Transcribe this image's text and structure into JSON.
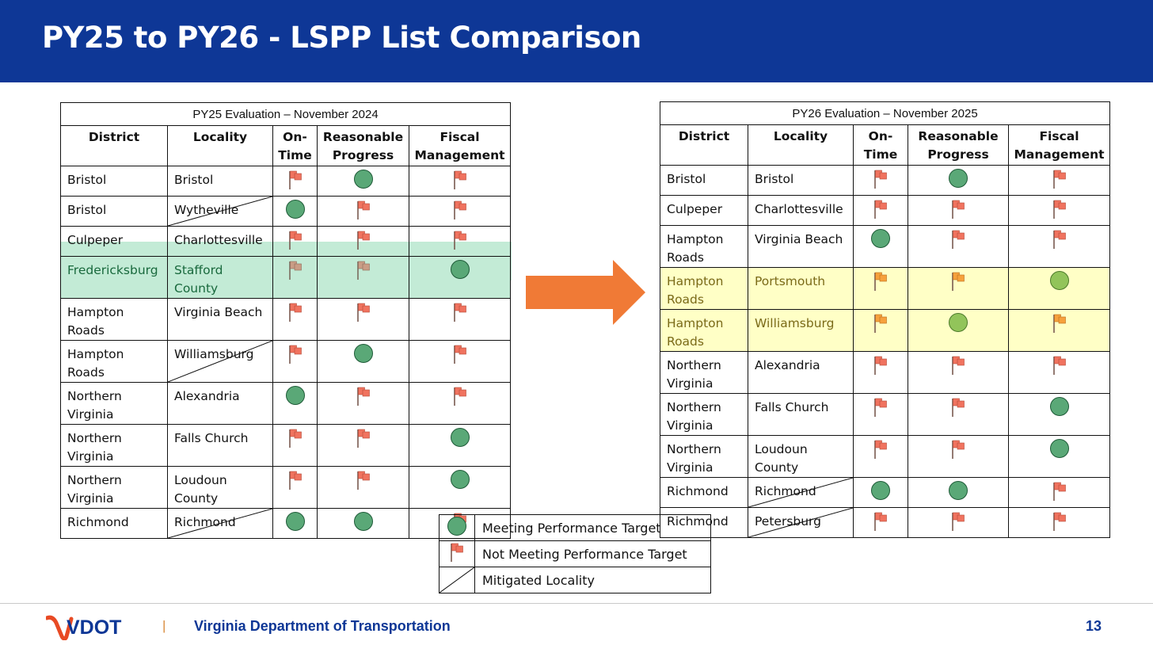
{
  "title": "PY25 to PY26 - LSPP List Comparison",
  "columns": [
    "District",
    "Locality",
    "On-Time",
    "Reasonable Progress",
    "Fiscal Management"
  ],
  "column_lines": {
    "on_time": [
      "On-",
      "Time"
    ],
    "reasonable": [
      "Reasonable",
      "Progress"
    ],
    "fiscal": [
      "Fiscal",
      "Management"
    ]
  },
  "py25": {
    "caption": "PY25 Evaluation – November 2024",
    "rows": [
      {
        "d1": "Bristol",
        "d2": "",
        "l1": "Bristol",
        "l2": "",
        "ontime": "flag",
        "progress": "circle",
        "fiscal": "flag",
        "mitigated": false,
        "highlight": ""
      },
      {
        "d1": "Bristol",
        "d2": "",
        "l1": "Wytheville",
        "l2": "",
        "ontime": "circle",
        "progress": "flag",
        "fiscal": "flag",
        "mitigated": true,
        "highlight": ""
      },
      {
        "d1": "Culpeper",
        "d2": "",
        "l1": "Charlottesville",
        "l2": "",
        "ontime": "flag",
        "progress": "flag",
        "fiscal": "flag",
        "mitigated": false,
        "highlight": ""
      },
      {
        "d1": "Fredericksburg",
        "d2": "",
        "l1": "Stafford",
        "l2": "County",
        "ontime": "flag",
        "progress": "flag",
        "fiscal": "circle",
        "mitigated": false,
        "highlight": "green"
      },
      {
        "d1": "Hampton",
        "d2": "Roads",
        "l1": "Virginia Beach",
        "l2": "",
        "ontime": "flag",
        "progress": "flag",
        "fiscal": "flag",
        "mitigated": false,
        "highlight": ""
      },
      {
        "d1": "Hampton",
        "d2": "Roads",
        "l1": "Williamsburg",
        "l2": "",
        "ontime": "flag",
        "progress": "circle",
        "fiscal": "flag",
        "mitigated": true,
        "highlight": ""
      },
      {
        "d1": "Northern",
        "d2": "Virginia",
        "l1": "Alexandria",
        "l2": "",
        "ontime": "circle",
        "progress": "flag",
        "fiscal": "flag",
        "mitigated": false,
        "highlight": ""
      },
      {
        "d1": "Northern",
        "d2": "Virginia",
        "l1": "Falls Church",
        "l2": "",
        "ontime": "flag",
        "progress": "flag",
        "fiscal": "circle",
        "mitigated": false,
        "highlight": ""
      },
      {
        "d1": "Northern",
        "d2": "Virginia",
        "l1": "Loudoun",
        "l2": "County",
        "ontime": "flag",
        "progress": "flag",
        "fiscal": "circle",
        "mitigated": false,
        "highlight": ""
      },
      {
        "d1": "Richmond",
        "d2": "",
        "l1": "Richmond",
        "l2": "",
        "ontime": "circle",
        "progress": "circle",
        "fiscal": "flag",
        "mitigated": true,
        "highlight": ""
      }
    ]
  },
  "py26": {
    "caption": "PY26 Evaluation – November 2025",
    "rows": [
      {
        "d1": "Bristol",
        "d2": "",
        "l1": "Bristol",
        "l2": "",
        "ontime": "flag",
        "progress": "circle",
        "fiscal": "flag",
        "mitigated": false,
        "highlight": ""
      },
      {
        "d1": "Culpeper",
        "d2": "",
        "l1": "Charlottesville",
        "l2": "",
        "ontime": "flag",
        "progress": "flag",
        "fiscal": "flag",
        "mitigated": false,
        "highlight": ""
      },
      {
        "d1": "Hampton",
        "d2": "Roads",
        "l1": "Virginia Beach",
        "l2": "",
        "ontime": "circle",
        "progress": "flag",
        "fiscal": "flag",
        "mitigated": false,
        "highlight": ""
      },
      {
        "d1": "Hampton",
        "d2": "Roads",
        "l1": "Portsmouth",
        "l2": "",
        "ontime": "flag",
        "progress": "flag",
        "fiscal": "circle",
        "mitigated": false,
        "highlight": "yellow"
      },
      {
        "d1": "Hampton",
        "d2": "Roads",
        "l1": "Williamsburg",
        "l2": "",
        "ontime": "flag",
        "progress": "circle",
        "fiscal": "flag",
        "mitigated": false,
        "highlight": "yellow"
      },
      {
        "d1": "Northern",
        "d2": "Virginia",
        "l1": "Alexandria",
        "l2": "",
        "ontime": "flag",
        "progress": "flag",
        "fiscal": "flag",
        "mitigated": false,
        "highlight": ""
      },
      {
        "d1": "Northern",
        "d2": "Virginia",
        "l1": "Falls Church",
        "l2": "",
        "ontime": "flag",
        "progress": "flag",
        "fiscal": "circle",
        "mitigated": false,
        "highlight": ""
      },
      {
        "d1": "Northern",
        "d2": "Virginia",
        "l1": "Loudoun",
        "l2": "County",
        "ontime": "flag",
        "progress": "flag",
        "fiscal": "circle",
        "mitigated": false,
        "highlight": ""
      },
      {
        "d1": "Richmond",
        "d2": "",
        "l1": "Richmond",
        "l2": "",
        "ontime": "circle",
        "progress": "circle",
        "fiscal": "flag",
        "mitigated": true,
        "highlight": ""
      },
      {
        "d1": "Richmond",
        "d2": "",
        "l1": "Petersburg",
        "l2": "",
        "ontime": "flag",
        "progress": "flag",
        "fiscal": "flag",
        "mitigated": true,
        "highlight": ""
      }
    ]
  },
  "legend": {
    "meeting": "Meeting Performance Target",
    "not_meeting": "Not Meeting Performance Target",
    "mitigated": "Mitigated Locality"
  },
  "footer": {
    "logo_text": "VDOT",
    "separator": "|",
    "department": "Virginia Department of Transportation",
    "page_number": "13"
  },
  "colors": {
    "header_blue": "#0e3796",
    "arrow_orange": "#f07a36",
    "flag_red": "#f0735f",
    "flag_orange": "#f6a13c",
    "circle_green": "#5aa877",
    "green_highlight": "#c3ebd6",
    "yellow_highlight": "#ffffc6"
  }
}
